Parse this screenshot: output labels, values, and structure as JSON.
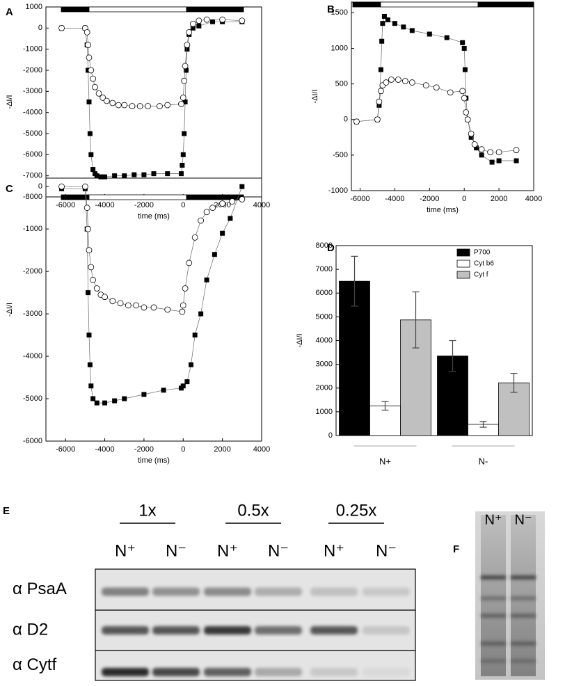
{
  "chart_data": [
    {
      "type": "line",
      "panel": "A",
      "xlabel": "time (ms)",
      "ylabel": "-ΔI/I",
      "xlim": [
        -7000,
        4000
      ],
      "ylim": [
        -8000,
        1000
      ],
      "xticks": [
        -6000,
        -4000,
        -2000,
        0,
        2000,
        4000
      ],
      "yticks": [
        -8000,
        -7000,
        -6000,
        -5000,
        -4000,
        -3000,
        -2000,
        -1000,
        0,
        1000
      ],
      "series": [
        {
          "marker": "square",
          "color": "#000000",
          "x": [
            -6200,
            -5000,
            -4900,
            -4850,
            -4800,
            -4750,
            -4700,
            -4600,
            -4500,
            -4400,
            -4200,
            -4000,
            -3500,
            -3000,
            -2500,
            -2000,
            -1500,
            -800,
            -100,
            -50,
            0,
            50,
            100,
            150,
            200,
            300,
            500,
            800,
            1500,
            2000,
            3000
          ],
          "values": [
            0,
            0,
            -800,
            -2000,
            -3500,
            -5000,
            -6000,
            -6700,
            -6900,
            -7000,
            -7050,
            -7050,
            -7000,
            -7000,
            -6950,
            -6950,
            -6900,
            -6900,
            -6900,
            -6500,
            -6000,
            -5000,
            -3500,
            -2000,
            -1000,
            -300,
            0,
            100,
            300,
            300,
            300
          ]
        },
        {
          "marker": "circle",
          "color": "#000000",
          "x": [
            -6200,
            -5000,
            -4900,
            -4850,
            -4800,
            -4700,
            -4600,
            -4500,
            -4300,
            -4100,
            -3900,
            -3600,
            -3300,
            -3000,
            -2600,
            -2200,
            -1800,
            -1200,
            -800,
            -100,
            0,
            50,
            100,
            200,
            300,
            500,
            800,
            1200,
            2000,
            3000
          ],
          "values": [
            0,
            0,
            -200,
            -800,
            -1400,
            -2000,
            -2400,
            -2800,
            -3100,
            -3300,
            -3450,
            -3550,
            -3650,
            -3650,
            -3700,
            -3700,
            -3700,
            -3700,
            -3650,
            -3600,
            -3300,
            -2500,
            -1800,
            -800,
            -200,
            200,
            350,
            400,
            400,
            350
          ]
        }
      ]
    },
    {
      "type": "line",
      "panel": "B",
      "xlabel": "time (ms)",
      "ylabel": "-ΔI/I",
      "xlim": [
        -6500,
        4000
      ],
      "ylim": [
        -1000,
        1650
      ],
      "xticks": [
        -6000,
        -4000,
        -2000,
        0,
        2000,
        4000
      ],
      "yticks": [
        -1000,
        -500,
        0,
        500,
        1000,
        1500
      ],
      "series": [
        {
          "marker": "square",
          "color": "#000000",
          "x": [
            -6200,
            -5000,
            -4900,
            -4800,
            -4750,
            -4700,
            -4600,
            -4400,
            -4000,
            -3500,
            -3000,
            -2000,
            -1000,
            -100,
            0,
            50,
            100,
            200,
            400,
            700,
            1000,
            1600,
            2000,
            3000
          ],
          "values": [
            -30,
            0,
            200,
            700,
            1100,
            1350,
            1450,
            1400,
            1350,
            1300,
            1250,
            1200,
            1150,
            1080,
            1000,
            700,
            300,
            0,
            -250,
            -400,
            -500,
            -600,
            -580,
            -580
          ]
        },
        {
          "marker": "circle",
          "color": "#000000",
          "x": [
            -6200,
            -5000,
            -4900,
            -4800,
            -4700,
            -4500,
            -4200,
            -3800,
            -3400,
            -3000,
            -2200,
            -1600,
            -800,
            -100,
            0,
            100,
            200,
            400,
            600,
            1000,
            1500,
            2000,
            3000
          ],
          "values": [
            -30,
            0,
            250,
            400,
            480,
            520,
            560,
            560,
            540,
            520,
            480,
            450,
            380,
            400,
            300,
            100,
            0,
            -200,
            -350,
            -420,
            -460,
            -460,
            -430
          ]
        }
      ]
    },
    {
      "type": "line",
      "panel": "C",
      "xlabel": "time (ms)",
      "ylabel": "-ΔI/I",
      "xlim": [
        -7000,
        4000
      ],
      "ylim": [
        -6000,
        200
      ],
      "xticks": [
        -6000,
        -4000,
        -2000,
        0,
        2000,
        4000
      ],
      "yticks": [
        -6000,
        -5000,
        -4000,
        -3000,
        -2000,
        -1000,
        0
      ],
      "series": [
        {
          "marker": "square",
          "color": "#000000",
          "x": [
            -6200,
            -5000,
            -4900,
            -4850,
            -4800,
            -4750,
            -4700,
            -4600,
            -4400,
            -4000,
            -3500,
            -3000,
            -2000,
            -1000,
            -100,
            0,
            200,
            400,
            600,
            900,
            1200,
            1600,
            2000,
            2400,
            3000
          ],
          "values": [
            -50,
            -50,
            -1000,
            -2500,
            -3500,
            -4200,
            -4700,
            -5000,
            -5100,
            -5100,
            -5050,
            -5000,
            -4900,
            -4800,
            -4750,
            -4700,
            -4600,
            -4200,
            -3500,
            -3000,
            -2200,
            -1600,
            -1100,
            -750,
            0
          ]
        },
        {
          "marker": "circle",
          "color": "#000000",
          "x": [
            -6200,
            -5000,
            -4900,
            -4850,
            -4800,
            -4700,
            -4600,
            -4400,
            -4200,
            -4000,
            -3600,
            -3200,
            -2800,
            -2400,
            -2000,
            -1500,
            -800,
            -50,
            0,
            100,
            300,
            600,
            900,
            1200,
            1500,
            2000,
            2500,
            3000
          ],
          "values": [
            0,
            0,
            -500,
            -1000,
            -1500,
            -1900,
            -2200,
            -2400,
            -2550,
            -2600,
            -2700,
            -2750,
            -2800,
            -2800,
            -2850,
            -2850,
            -2900,
            -2950,
            -2800,
            -2400,
            -1800,
            -1200,
            -800,
            -600,
            -500,
            -400,
            -350,
            -300
          ]
        }
      ]
    },
    {
      "type": "bar",
      "panel": "D",
      "ylabel": "-ΔI/I",
      "categories": [
        "N+",
        "N-"
      ],
      "ylim": [
        0,
        8000
      ],
      "yticks": [
        0,
        1000,
        2000,
        3000,
        4000,
        5000,
        6000,
        7000,
        8000
      ],
      "legend": "upper right",
      "series": [
        {
          "name": "P700",
          "color": "#000000",
          "values": [
            6500,
            3350
          ],
          "errors": [
            1050,
            650
          ]
        },
        {
          "name": "Cyt b6",
          "color": "#ffffff",
          "values": [
            1250,
            470
          ],
          "errors": [
            180,
            120
          ]
        },
        {
          "name": "Cyt f",
          "color": "#c0c0c0",
          "values": [
            4870,
            2220
          ],
          "errors": [
            1180,
            400
          ]
        }
      ]
    }
  ],
  "blot": {
    "label": "E",
    "groups": [
      "1x",
      "0.5x",
      "0.25x"
    ],
    "lanes": [
      "N⁺",
      "N⁻",
      "N⁺",
      "N⁻",
      "N⁺",
      "N⁻"
    ],
    "rows": [
      "α PsaA",
      "α D2",
      "α Cytf"
    ]
  },
  "gel": {
    "label": "F",
    "lanes": [
      "N⁺",
      "N⁻"
    ]
  }
}
